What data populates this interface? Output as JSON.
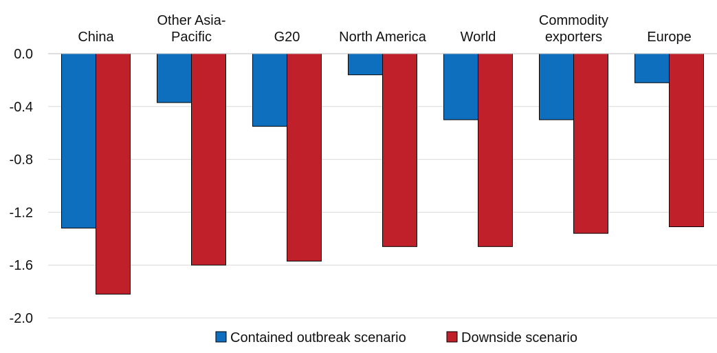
{
  "chart_data": {
    "type": "bar",
    "title": "",
    "xlabel": "",
    "ylabel": "",
    "categories": [
      [
        "China"
      ],
      [
        "Other Asia-",
        "Pacific"
      ],
      [
        "G20"
      ],
      [
        "North America"
      ],
      [
        "World"
      ],
      [
        "Commodity",
        "exporters"
      ],
      [
        "Europe"
      ]
    ],
    "series": [
      {
        "name": "Contained outbreak scenario",
        "color": "#0f6fbf",
        "values": [
          -1.32,
          -0.37,
          -0.55,
          -0.16,
          -0.5,
          -0.5,
          -0.22
        ]
      },
      {
        "name": "Downside scenario",
        "color": "#c0202a",
        "values": [
          -1.82,
          -1.6,
          -1.57,
          -1.46,
          -1.46,
          -1.36,
          -1.31
        ]
      }
    ],
    "ylim": [
      -2.0,
      0.0
    ],
    "yticks": [
      "0.0",
      "-0.4",
      "-0.8",
      "-1.2",
      "-1.6",
      "-2.0"
    ],
    "ytick_values": [
      0.0,
      -0.4,
      -0.8,
      -1.2,
      -1.6,
      -2.0
    ],
    "grid": true,
    "legend_position": "bottom",
    "category_labels_position": "top"
  }
}
